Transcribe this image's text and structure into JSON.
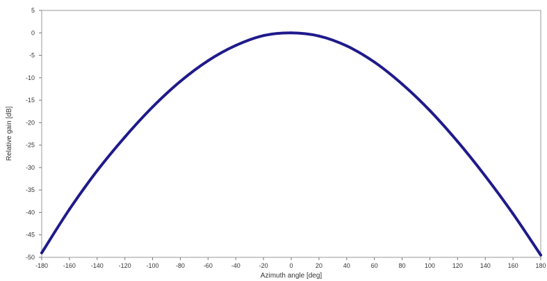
{
  "chart_data": {
    "type": "line",
    "title": "",
    "xlabel": "Azimuth angle [deg]",
    "ylabel": "Relative gain [dB]",
    "xlim": [
      -180,
      180
    ],
    "ylim": [
      -50,
      5
    ],
    "xticks": [
      -180,
      -160,
      -140,
      -120,
      -100,
      -80,
      -60,
      -40,
      -20,
      0,
      20,
      40,
      60,
      80,
      100,
      120,
      140,
      160,
      180
    ],
    "yticks": [
      5,
      0,
      -5,
      -10,
      -15,
      -20,
      -25,
      -30,
      -35,
      -40,
      -45,
      -50
    ],
    "grid": false,
    "legend": "none",
    "color": "#1f1a8a",
    "series": [
      {
        "x": [
          -180,
          -160,
          -140,
          -120,
          -100,
          -80,
          -60,
          -40,
          -20,
          0,
          20,
          40,
          60,
          80,
          100,
          120,
          140,
          160,
          180
        ],
        "values": [
          -49,
          -39.3,
          -30.7,
          -23.2,
          -16.5,
          -10.8,
          -6.2,
          -2.8,
          -0.6,
          0,
          -0.7,
          -2.9,
          -6.5,
          -11.4,
          -17.3,
          -24.2,
          -31.9,
          -40.3,
          -49.5
        ]
      }
    ]
  }
}
